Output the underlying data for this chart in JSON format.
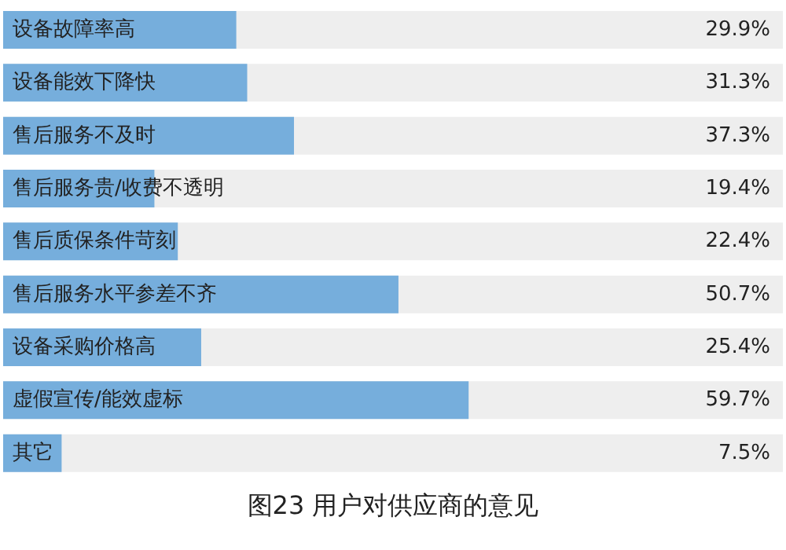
{
  "chart_data": {
    "type": "bar",
    "orientation": "horizontal",
    "title": "图23 用户对供应商的意见",
    "categories": [
      "设备故障率高",
      "设备能效下降快",
      "售后服务不及时",
      "售后服务贵/收费不透明",
      "售后质保条件苛刻",
      "售后服务水平参差不齐",
      "设备采购价格高",
      "虚假宣传/能效虚标",
      "其它"
    ],
    "values": [
      29.9,
      31.3,
      37.3,
      19.4,
      22.4,
      50.7,
      25.4,
      59.7,
      7.5
    ],
    "value_labels": [
      "29.9%",
      "31.3%",
      "37.3%",
      "19.4%",
      "22.4%",
      "50.7%",
      "25.4%",
      "59.7%",
      "7.5%"
    ],
    "color": "#76aedc",
    "xlim": [
      0,
      100
    ],
    "tick_labels": false
  }
}
